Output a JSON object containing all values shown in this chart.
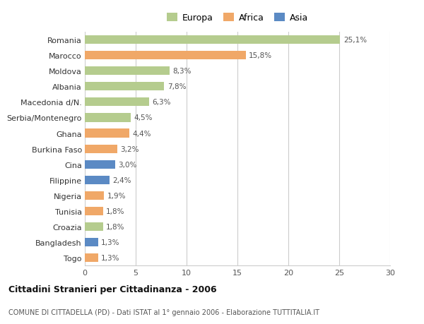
{
  "countries": [
    "Romania",
    "Marocco",
    "Moldova",
    "Albania",
    "Macedonia d/N.",
    "Serbia/Montenegro",
    "Ghana",
    "Burkina Faso",
    "Cina",
    "Filippine",
    "Nigeria",
    "Tunisia",
    "Croazia",
    "Bangladesh",
    "Togo"
  ],
  "values": [
    25.1,
    15.8,
    8.3,
    7.8,
    6.3,
    4.5,
    4.4,
    3.2,
    3.0,
    2.4,
    1.9,
    1.8,
    1.8,
    1.3,
    1.3
  ],
  "continents": [
    "Europa",
    "Africa",
    "Europa",
    "Europa",
    "Europa",
    "Europa",
    "Africa",
    "Africa",
    "Asia",
    "Asia",
    "Africa",
    "Africa",
    "Europa",
    "Asia",
    "Africa"
  ],
  "labels": [
    "25,1%",
    "15,8%",
    "8,3%",
    "7,8%",
    "6,3%",
    "4,5%",
    "4,4%",
    "3,2%",
    "3,0%",
    "2,4%",
    "1,9%",
    "1,8%",
    "1,8%",
    "1,3%",
    "1,3%"
  ],
  "colors": {
    "Europa": "#b5cc8e",
    "Africa": "#f0a868",
    "Asia": "#5b8ac4"
  },
  "legend_labels": [
    "Europa",
    "Africa",
    "Asia"
  ],
  "legend_colors": [
    "#b5cc8e",
    "#f0a868",
    "#5b8ac4"
  ],
  "title": "Cittadini Stranieri per Cittadinanza - 2006",
  "subtitle": "COMUNE DI CITTADELLA (PD) - Dati ISTAT al 1° gennaio 2006 - Elaborazione TUTTITALIA.IT",
  "xlim": [
    0,
    30
  ],
  "xticks": [
    0,
    5,
    10,
    15,
    20,
    25,
    30
  ],
  "background_color": "#ffffff",
  "plot_bg_color": "#ffffff",
  "grid_color": "#cccccc"
}
